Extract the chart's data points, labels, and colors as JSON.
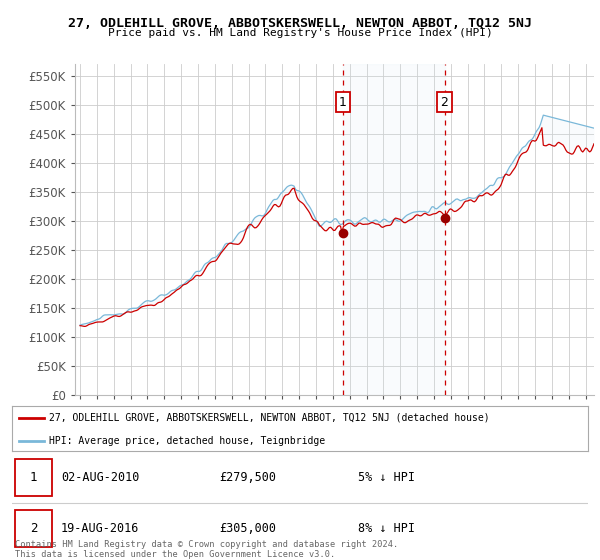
{
  "title": "27, ODLEHILL GROVE, ABBOTSKERSWELL, NEWTON ABBOT, TQ12 5NJ",
  "subtitle": "Price paid vs. HM Land Registry's House Price Index (HPI)",
  "ylabel_ticks": [
    "£0",
    "£50K",
    "£100K",
    "£150K",
    "£200K",
    "£250K",
    "£300K",
    "£350K",
    "£400K",
    "£450K",
    "£500K",
    "£550K"
  ],
  "ylim": [
    0,
    570000
  ],
  "xlim_start": 1994.7,
  "xlim_end": 2025.5,
  "transaction1_x": 2010.58,
  "transaction1_y": 279500,
  "transaction1_label": "1",
  "transaction2_x": 2016.63,
  "transaction2_y": 305000,
  "transaction2_label": "2",
  "hpi_color": "#7ab8d9",
  "price_color": "#cc0000",
  "marker_color": "#990000",
  "annotation_box_color": "#cc0000",
  "dashed_line_color": "#cc0000",
  "shade_color": "#d8eaf5",
  "legend_line1": "27, ODLEHILL GROVE, ABBOTSKERSWELL, NEWTON ABBOT, TQ12 5NJ (detached house)",
  "legend_line2": "HPI: Average price, detached house, Teignbridge",
  "table_row1_num": "1",
  "table_row1_date": "02-AUG-2010",
  "table_row1_price": "£279,500",
  "table_row1_hpi": "5% ↓ HPI",
  "table_row2_num": "2",
  "table_row2_date": "19-AUG-2016",
  "table_row2_price": "£305,000",
  "table_row2_hpi": "8% ↓ HPI",
  "footer": "Contains HM Land Registry data © Crown copyright and database right 2024.\nThis data is licensed under the Open Government Licence v3.0.",
  "background_color": "#ffffff",
  "grid_color": "#cccccc"
}
